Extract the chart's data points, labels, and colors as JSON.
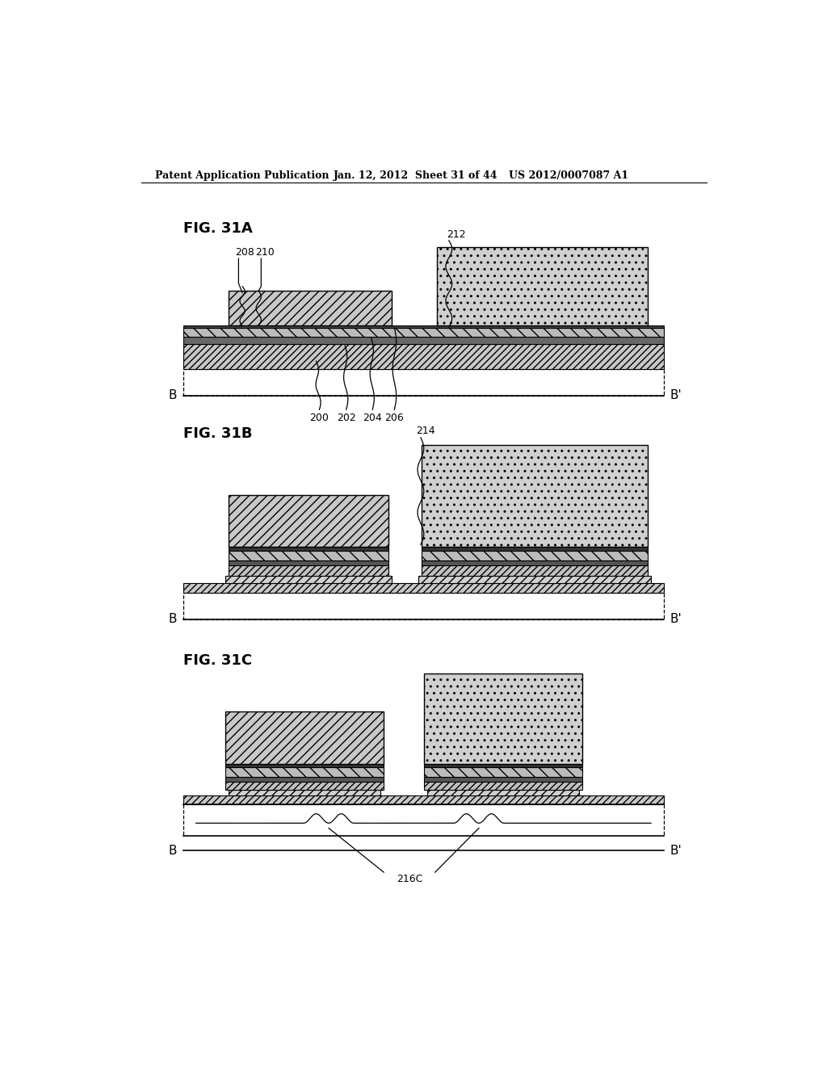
{
  "header_left": "Patent Application Publication",
  "header_mid": "Jan. 12, 2012  Sheet 31 of 44",
  "header_right": "US 2012/0007087 A1",
  "background": "#ffffff",
  "line_color": "#000000",
  "fig_a_label": "FIG. 31A",
  "fig_b_label": "FIG. 31B",
  "fig_c_label": "FIG. 31C",
  "labels_a": [
    "208",
    "210",
    "212",
    "200",
    "202",
    "204",
    "206"
  ],
  "labels_b": [
    "214"
  ],
  "labels_c": [
    "216C"
  ],
  "hatch_diag_dense": "////",
  "hatch_diag_sparse": "///",
  "hatch_dot": "ooo",
  "hatch_backdiag": "\\\\\\\\",
  "fc_diag": "#c8c8c8",
  "fc_dot": "#d0d0d0",
  "fc_dark": "#686868",
  "fc_white": "#ffffff",
  "fc_light": "#e0e0e0"
}
